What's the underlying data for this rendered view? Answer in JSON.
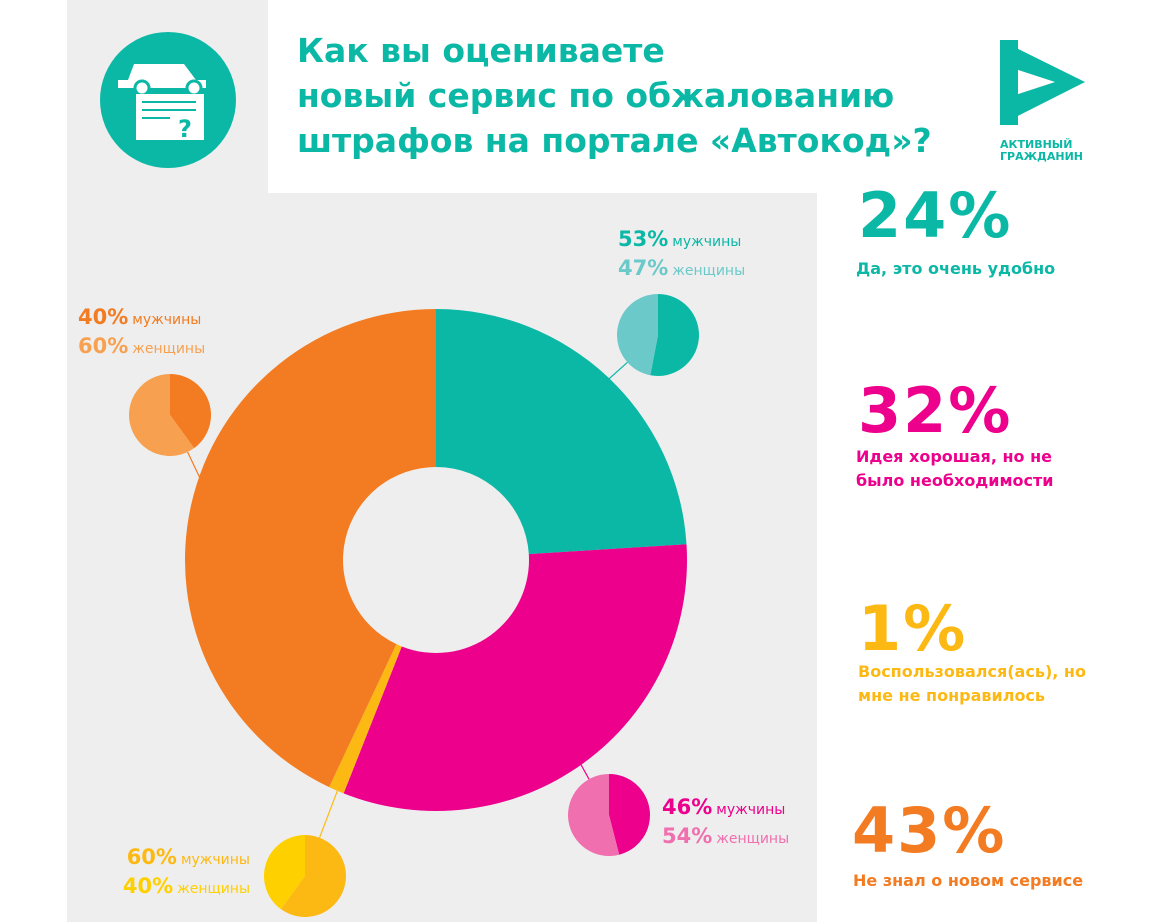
{
  "header": {
    "title_lines": [
      "Как вы оцениваете",
      "новый сервис по обжалованию",
      "штрафов на портале «Автокод»?"
    ],
    "logo": [
      "АКТИВНЫЙ",
      "ГРАЖДАНИН"
    ]
  },
  "chart_data": {
    "type": "donut",
    "categories": [
      "Да, это очень удобно",
      "Идея хорошая, но не было необходимости",
      "Воспользовался(ась), но мне не понравилось",
      "Не знал о новом сервисе"
    ],
    "values": [
      24,
      32,
      1,
      43
    ],
    "value_labels": [
      "24%",
      "32%",
      "1%",
      "43%"
    ],
    "colors": [
      "#0bb8a6",
      "#ec008c",
      "#fdb913",
      "#f37b21"
    ],
    "splits": [
      {
        "series": [
          {
            "name": "мужчины",
            "value": 53,
            "value_label": "53%",
            "color": "#0bb8a6"
          },
          {
            "name": "женщины",
            "value": 47,
            "value_label": "47%",
            "color": "#6cc9c9"
          }
        ]
      },
      {
        "series": [
          {
            "name": "мужчины",
            "value": 46,
            "value_label": "46%",
            "color": "#ec008c"
          },
          {
            "name": "женщины",
            "value": 54,
            "value_label": "54%",
            "color": "#f06fae"
          }
        ]
      },
      {
        "series": [
          {
            "name": "мужчины",
            "value": 60,
            "value_label": "60%",
            "color": "#fdb913"
          },
          {
            "name": "женщины",
            "value": 40,
            "value_label": "40%",
            "color": "#ffd000"
          }
        ]
      },
      {
        "series": [
          {
            "name": "мужчины",
            "value": 40,
            "value_label": "40%",
            "color": "#f37b21"
          },
          {
            "name": "женщины",
            "value": 60,
            "value_label": "60%",
            "color": "#f7a150"
          }
        ]
      }
    ]
  }
}
